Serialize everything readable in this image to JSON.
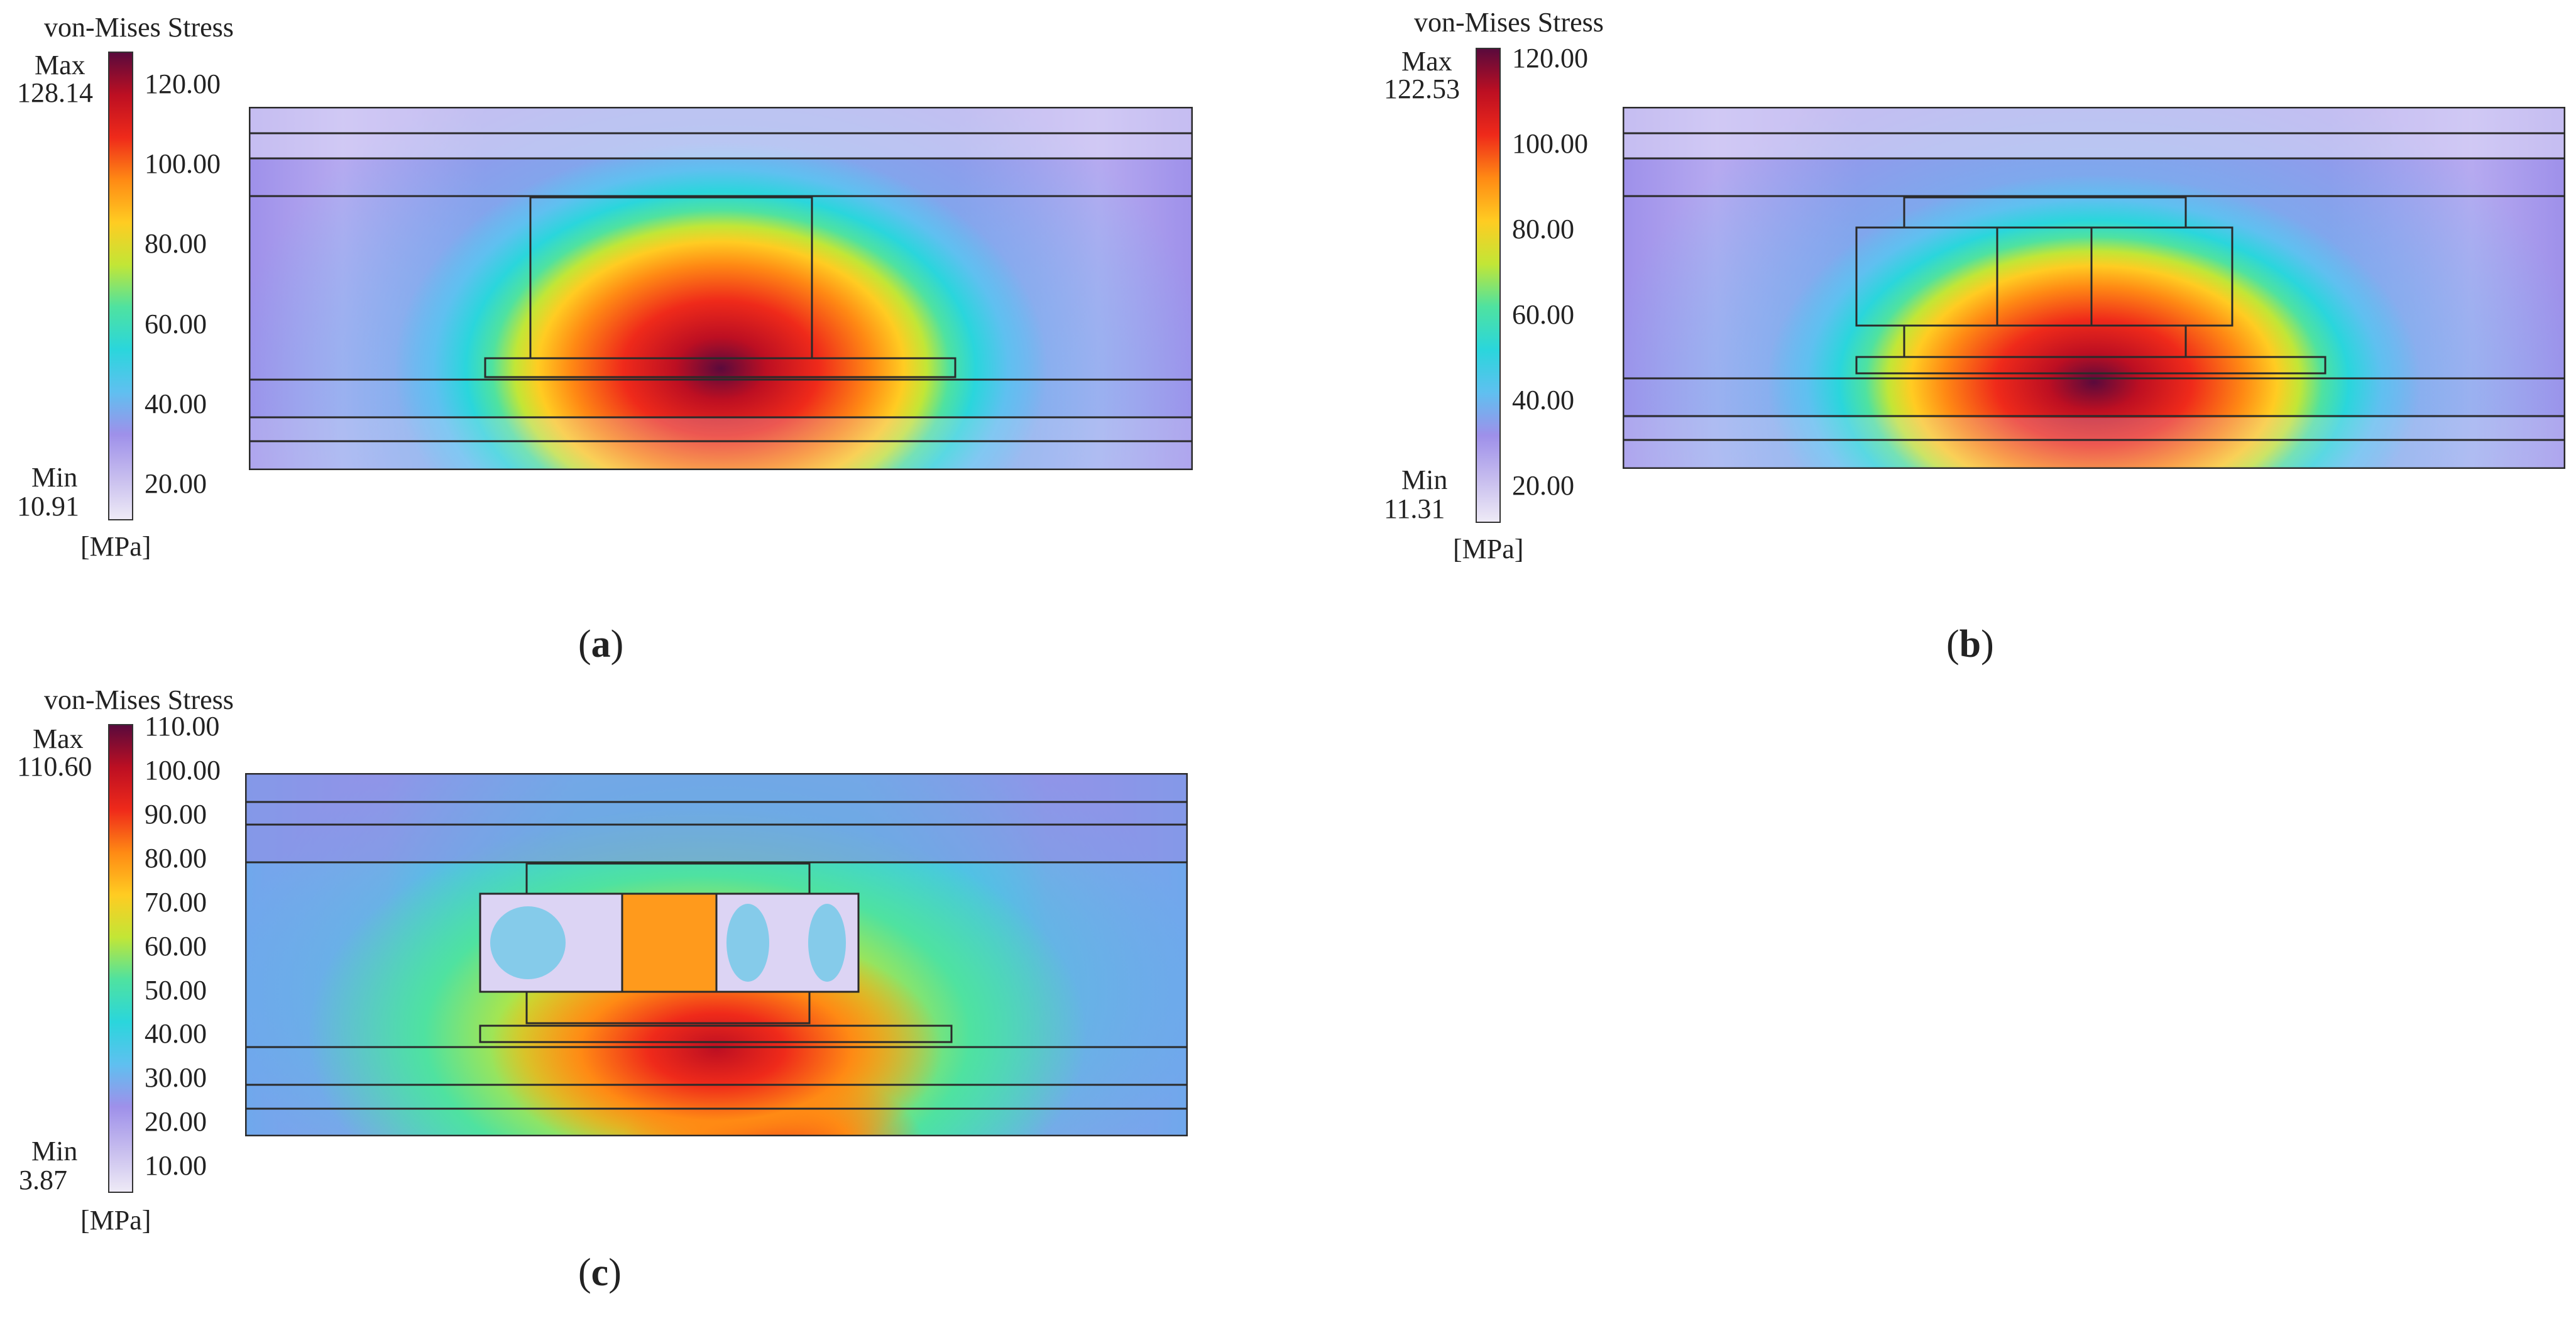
{
  "colors": {
    "colormap": [
      "#eeeaf6",
      "#c6bcee",
      "#9e90ea",
      "#5fc0f0",
      "#2ad6dc",
      "#4fe2a0",
      "#c2e636",
      "#ffcc22",
      "#ff8a14",
      "#ef2a1a",
      "#bd0f22",
      "#5a0a3c"
    ],
    "outline": "#2a2a2a",
    "background": "#ffffff"
  },
  "panels": [
    {
      "id": "a",
      "caption_letter": "a",
      "legend": {
        "title": "von-Mises Stress",
        "max_label": "Max",
        "max_value": "128.14",
        "min_label": "Min",
        "min_value": "10.91",
        "unit": "[MPa]",
        "ticks": [
          "120.00",
          "100.00",
          "80.00",
          "60.00",
          "40.00",
          "20.00"
        ],
        "range": [
          10.91,
          128.14
        ],
        "tick_values": [
          120,
          100,
          80,
          60,
          40,
          20
        ]
      }
    },
    {
      "id": "b",
      "caption_letter": "b",
      "legend": {
        "title": "von-Mises Stress",
        "max_label": "Max",
        "max_value": "122.53",
        "min_label": "Min",
        "min_value": "11.31",
        "unit": "[MPa]",
        "ticks": [
          "120.00",
          "100.00",
          "80.00",
          "60.00",
          "40.00",
          "20.00"
        ],
        "range": [
          11.31,
          122.53
        ],
        "tick_values": [
          120,
          100,
          80,
          60,
          40,
          20
        ]
      }
    },
    {
      "id": "c",
      "caption_letter": "c",
      "legend": {
        "title": "von-Mises Stress",
        "max_label": "Max",
        "max_value": "110.60",
        "min_label": "Min",
        "min_value": "3.87",
        "unit": "[MPa]",
        "ticks": [
          "110.00",
          "100.00",
          "90.00",
          "80.00",
          "70.00",
          "60.00",
          "50.00",
          "40.00",
          "30.00",
          "20.00",
          "10.00"
        ],
        "range": [
          3.87,
          110.6
        ],
        "tick_values": [
          110,
          100,
          90,
          80,
          70,
          60,
          50,
          40,
          30,
          20,
          10
        ]
      }
    }
  ]
}
